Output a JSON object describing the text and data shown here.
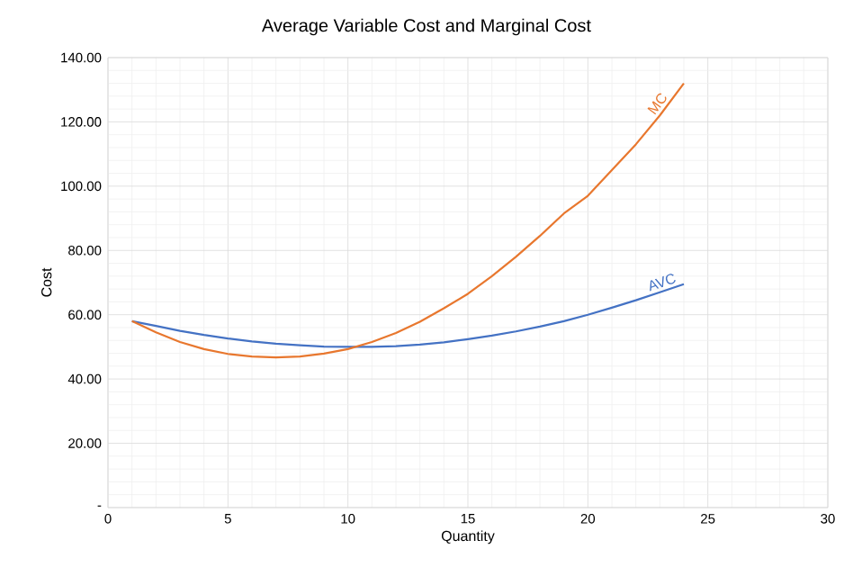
{
  "chart_data": {
    "type": "line",
    "title": "Average Variable Cost and Marginal Cost",
    "xlabel": "Quantity",
    "ylabel": "Cost",
    "x": [
      1,
      2,
      3,
      4,
      5,
      6,
      7,
      8,
      9,
      10,
      11,
      12,
      13,
      14,
      15,
      16,
      17,
      18,
      19,
      20,
      21,
      22,
      23,
      24
    ],
    "series": [
      {
        "name": "AVC",
        "color": "#4472c4",
        "values": [
          58,
          56.5,
          55,
          53.7,
          52.6,
          51.7,
          51,
          50.5,
          50.1,
          50,
          50,
          50.2,
          50.7,
          51.4,
          52.4,
          53.5,
          54.8,
          56.3,
          58,
          60,
          62.2,
          64.5,
          67,
          69.5
        ]
      },
      {
        "name": "MC",
        "color": "#e8772e",
        "values": [
          58,
          54.5,
          51.5,
          49.3,
          47.8,
          47,
          46.7,
          47,
          47.9,
          49.3,
          51.5,
          54.3,
          57.8,
          62,
          66.5,
          72,
          78,
          84.5,
          91.5,
          97,
          105,
          113,
          122,
          132
        ]
      }
    ],
    "xlim": [
      0,
      30
    ],
    "xticks": [
      0,
      5,
      10,
      15,
      20,
      25,
      30
    ],
    "ylim": [
      0,
      140
    ],
    "yticks": [
      {
        "value": 0,
        "label": "-"
      },
      {
        "value": 20,
        "label": "20.00"
      },
      {
        "value": 40,
        "label": "40.00"
      },
      {
        "value": 60,
        "label": "60.00"
      },
      {
        "value": 80,
        "label": "80.00"
      },
      {
        "value": 100,
        "label": "100.00"
      },
      {
        "value": 120,
        "label": "120.00"
      },
      {
        "value": 140,
        "label": "140.00"
      }
    ],
    "grid": true,
    "legend": false,
    "marker": "none",
    "line_style": "solid"
  }
}
